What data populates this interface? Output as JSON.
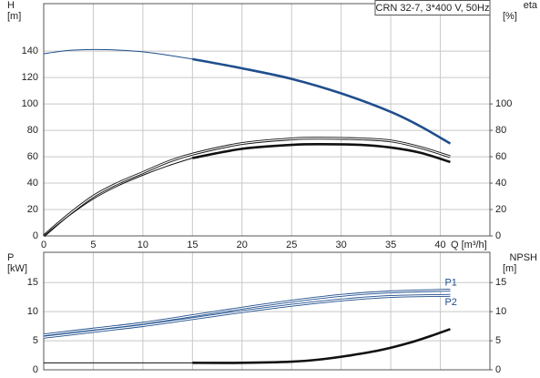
{
  "chart_data": [
    {
      "type": "line",
      "title": "CRN 32-7, 3*400 V, 50Hz",
      "y_label": "H",
      "y_unit": "[m]",
      "y2_label": "eta",
      "y2_unit": "[%]",
      "x_label": "Q [m³/h]",
      "xlim": [
        0,
        45
      ],
      "xticks": [
        0,
        5,
        10,
        15,
        20,
        25,
        30,
        35,
        40
      ],
      "x_tick_labels": true,
      "ylim": [
        0,
        176
      ],
      "yticks": [
        0,
        20,
        40,
        60,
        80,
        100,
        120,
        140
      ],
      "y2lim": [
        0,
        176
      ],
      "y2ticks": [
        0,
        20,
        40,
        60,
        80,
        100
      ],
      "grid": true,
      "series": [
        {
          "color": "#1f4e8c",
          "style": "thin",
          "x": [
            0,
            2.5,
            5,
            7.5,
            10,
            12.5,
            15
          ],
          "values": [
            138,
            140.5,
            141.2,
            140.8,
            139.5,
            137,
            134
          ]
        },
        {
          "color": "#1f4e8c",
          "style": "thick",
          "x": [
            15,
            20,
            25,
            30,
            35,
            38,
            41
          ],
          "values": [
            134,
            127,
            119,
            108,
            94,
            83,
            70
          ]
        },
        {
          "color": "#111111",
          "style": "double",
          "axis": "y2",
          "x": [
            0,
            2.5,
            5,
            7.5,
            10,
            12.5,
            15,
            20,
            25,
            28,
            32,
            35,
            38,
            41
          ],
          "values": [
            0,
            16,
            30,
            40,
            48,
            56,
            62,
            70,
            73.5,
            74,
            73.5,
            72,
            67,
            60
          ]
        },
        {
          "color": "#111111",
          "style": "thin",
          "axis": "y2",
          "x": [
            0,
            2.5,
            5,
            7.5,
            10,
            12.5,
            15
          ],
          "values": [
            0,
            15,
            28,
            38,
            46,
            53,
            59
          ]
        },
        {
          "color": "#111111",
          "style": "thick",
          "axis": "y2",
          "x": [
            15,
            20,
            25,
            28,
            32,
            35,
            38,
            41
          ],
          "values": [
            59,
            66,
            69,
            69.5,
            69,
            67,
            63,
            56
          ]
        }
      ]
    },
    {
      "type": "line",
      "y_label": "P",
      "y_unit": "[kW]",
      "y2_label": "NPSH",
      "y2_unit": "[m]",
      "xlim": [
        0,
        45
      ],
      "xticks": [
        0,
        5,
        10,
        15,
        20,
        25,
        30,
        35,
        40
      ],
      "x_tick_labels": false,
      "ylim": [
        0,
        20.2
      ],
      "yticks": [
        0,
        5,
        10,
        15
      ],
      "y2lim": [
        0,
        20.2
      ],
      "y2ticks": [
        0,
        5,
        10,
        15
      ],
      "grid": true,
      "series": [
        {
          "name": "P1",
          "color": "#1f4e8c",
          "style": "double",
          "x": [
            0,
            5,
            10,
            15,
            20,
            25,
            30,
            35,
            41
          ],
          "values": [
            6,
            7,
            8,
            9.3,
            10.6,
            11.8,
            12.8,
            13.4,
            13.7
          ]
        },
        {
          "name": "P2",
          "color": "#1f4e8c",
          "style": "double",
          "x": [
            0,
            5,
            10,
            15,
            20,
            25,
            30,
            35,
            41
          ],
          "values": [
            5.6,
            6.6,
            7.6,
            8.8,
            10,
            11.1,
            12,
            12.6,
            12.8
          ]
        },
        {
          "color": "#111111",
          "style": "thin",
          "axis": "y2",
          "x": [
            0,
            15
          ],
          "values": [
            1.2,
            1.2
          ]
        },
        {
          "color": "#111111",
          "style": "thick",
          "axis": "y2",
          "x": [
            15,
            20,
            25,
            28,
            31,
            34,
            37,
            39,
            41
          ],
          "values": [
            1.2,
            1.2,
            1.4,
            1.8,
            2.5,
            3.4,
            4.7,
            5.8,
            7
          ]
        }
      ]
    }
  ]
}
